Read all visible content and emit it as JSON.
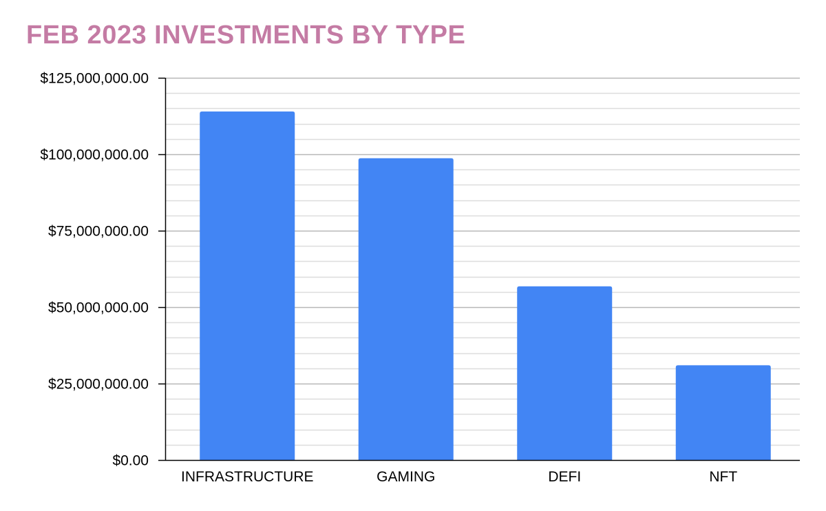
{
  "chart_data": {
    "type": "bar",
    "title": "FEB 2023 INVESTMENTS BY TYPE",
    "xlabel": "",
    "ylabel": "",
    "categories": [
      "INFRASTRUCTURE",
      "GAMING",
      "DEFI",
      "NFT"
    ],
    "values": [
      114000000,
      98700000,
      56800000,
      31000000
    ],
    "ylim": [
      0,
      125000000
    ],
    "yticks": [
      0,
      25000000,
      50000000,
      75000000,
      100000000,
      125000000
    ],
    "ytick_labels": [
      "$0.00",
      "$25,000,000.00",
      "$50,000,000.00",
      "$75,000,000.00",
      "$100,000,000.00",
      "$125,000,000.00"
    ],
    "minor_grid_step": 5000000,
    "grid": true,
    "legend": "none",
    "colors": {
      "bar": "#4285f4",
      "title": "#c47ba4",
      "major_grid": "#b7b7b7",
      "minor_grid": "#dddddd",
      "axis": "#000000"
    }
  }
}
